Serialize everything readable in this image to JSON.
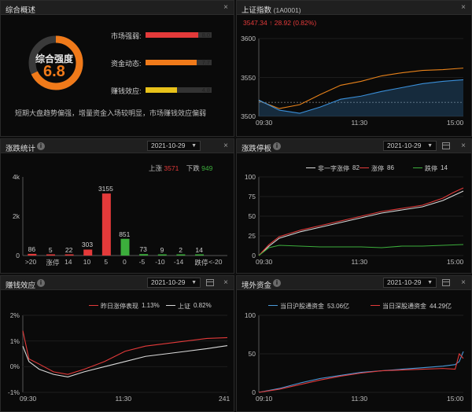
{
  "overview": {
    "title": "综合概述",
    "gauge_label": "综合强度",
    "gauge_value": "6.8",
    "gauge_fraction": 0.68,
    "metrics": [
      {
        "label": "市场强弱:",
        "value": "8.0",
        "fraction": 0.8,
        "color": "#e33a3a"
      },
      {
        "label": "资金动态:",
        "value": "7.7",
        "fraction": 0.77,
        "color": "#f07a1a"
      },
      {
        "label": "赚钱效应:",
        "value": "4.8",
        "fraction": 0.48,
        "color": "#e8c21a"
      }
    ],
    "summary": "短期大盘趋势偏强，增量资金入场较明显，市场赚钱效应偏弱"
  },
  "index": {
    "title": "上证指数",
    "code": "(1A0001)",
    "price": "3547.34",
    "arrow": "↑",
    "change": "28.92",
    "pct": "(0.82%)",
    "y_ticks": [
      "3600",
      "3550",
      "3500"
    ],
    "x_ticks": [
      "09:30",
      "11:30",
      "15:00"
    ]
  },
  "stats": {
    "title": "涨跌统计",
    "date": "2021-10-29",
    "up_label": "上涨",
    "up_count": "3571",
    "down_label": "下跌",
    "down_count": "949",
    "y_ticks": [
      "4k",
      "2k",
      "0"
    ]
  },
  "limit": {
    "title": "涨跌停板",
    "date": "2021-10-29",
    "legend": [
      {
        "name": "非一字涨停",
        "value": "82",
        "color": "#d9d9d9"
      },
      {
        "name": "涨停",
        "value": "86",
        "color": "#e33a3a"
      },
      {
        "name": "跌停",
        "value": "14",
        "color": "#3cae3c"
      }
    ],
    "y_ticks": [
      "100",
      "75",
      "50",
      "25",
      "0"
    ],
    "x_ticks": [
      "09:30",
      "11:30",
      "15:00"
    ]
  },
  "profit": {
    "title": "赚钱效应",
    "date": "2021-10-29",
    "legend": [
      {
        "name": "昨日涨停表现",
        "value": "1.13%",
        "color": "#e33a3a"
      },
      {
        "name": "上证",
        "value": "0.82%",
        "color": "#d9d9d9"
      }
    ],
    "y_ticks": [
      "2%",
      "1%",
      "0%",
      "-1%"
    ],
    "x_ticks": [
      "09:30",
      "11:30",
      "241"
    ]
  },
  "foreign": {
    "title": "境外资金",
    "date": "2021-10-29",
    "legend": [
      {
        "name": "当日沪股通资金",
        "value": "53.06亿",
        "color": "#4a9ad9"
      },
      {
        "name": "当日深股通资金",
        "value": "44.29亿",
        "color": "#e33a3a"
      }
    ],
    "y_ticks": [
      "100",
      "50",
      "0"
    ],
    "x_ticks": [
      "09:10",
      "11:30",
      "15:00"
    ]
  },
  "chart_data": [
    {
      "type": "line",
      "title": "上证指数",
      "x_ticks": [
        "09:30",
        "11:30",
        "15:00"
      ],
      "ylim": [
        3500,
        3600
      ],
      "series": [
        {
          "color": "#e8821a",
          "x": [
            0,
            0.1,
            0.2,
            0.3,
            0.4,
            0.5,
            0.6,
            0.7,
            0.8,
            0.9,
            1.0
          ],
          "values": [
            3520,
            3510,
            3515,
            3528,
            3540,
            3545,
            3552,
            3556,
            3559,
            3560,
            3562
          ]
        },
        {
          "color": "#3a8fd9",
          "x": [
            0,
            0.1,
            0.2,
            0.3,
            0.4,
            0.5,
            0.6,
            0.7,
            0.8,
            0.9,
            1.0
          ],
          "values": [
            3521,
            3508,
            3504,
            3512,
            3522,
            3526,
            3532,
            3537,
            3542,
            3545,
            3547
          ]
        }
      ],
      "reference": 3518
    },
    {
      "type": "bar",
      "title": "涨跌统计",
      "categories": [
        ">20",
        "涨停",
        "14",
        "10",
        "5",
        "0",
        "-5",
        "-10",
        "-14",
        "跌停",
        "<-20"
      ],
      "values": [
        86,
        5,
        22,
        303,
        3155,
        851,
        73,
        9,
        2,
        14,
        0
      ],
      "labels": [
        "86",
        "5",
        "22",
        "303",
        "3155",
        "851",
        "73",
        "9",
        "2",
        "14",
        ""
      ],
      "colors": [
        "#e33a3a",
        "#e33a3a",
        "#e33a3a",
        "#e33a3a",
        "#e33a3a",
        "#3cae3c",
        "#3cae3c",
        "#3cae3c",
        "#3cae3c",
        "#3cae3c",
        "#3cae3c"
      ],
      "ylim": [
        0,
        4000
      ]
    },
    {
      "type": "line",
      "title": "涨跌停板",
      "x_ticks": [
        "09:30",
        "11:30",
        "15:00"
      ],
      "ylim": [
        0,
        100
      ],
      "series": [
        {
          "name": "非一字涨停",
          "color": "#d9d9d9",
          "x": [
            0,
            0.05,
            0.1,
            0.2,
            0.3,
            0.4,
            0.5,
            0.6,
            0.7,
            0.8,
            0.9,
            0.95,
            1.0
          ],
          "values": [
            0,
            12,
            22,
            30,
            36,
            42,
            48,
            54,
            58,
            62,
            70,
            76,
            82
          ]
        },
        {
          "name": "涨停",
          "color": "#e33a3a",
          "x": [
            0,
            0.05,
            0.1,
            0.2,
            0.3,
            0.4,
            0.5,
            0.6,
            0.7,
            0.8,
            0.9,
            0.95,
            1.0
          ],
          "values": [
            0,
            14,
            24,
            32,
            38,
            44,
            50,
            56,
            60,
            64,
            73,
            80,
            86
          ]
        },
        {
          "name": "跌停",
          "color": "#3cae3c",
          "x": [
            0,
            0.05,
            0.1,
            0.2,
            0.3,
            0.4,
            0.5,
            0.6,
            0.7,
            0.8,
            0.9,
            1.0
          ],
          "values": [
            0,
            10,
            13,
            12,
            11,
            11,
            11,
            10,
            12,
            12,
            13,
            14
          ]
        }
      ]
    },
    {
      "type": "line",
      "title": "赚钱效应",
      "x_ticks": [
        "09:30",
        "11:30",
        "241"
      ],
      "ylim": [
        -1,
        2
      ],
      "series": [
        {
          "name": "昨日涨停表现",
          "color": "#e33a3a",
          "x": [
            0,
            0.03,
            0.08,
            0.15,
            0.22,
            0.3,
            0.4,
            0.5,
            0.6,
            0.7,
            0.8,
            0.9,
            1.0
          ],
          "values": [
            1.4,
            0.3,
            0.1,
            -0.2,
            -0.3,
            -0.1,
            0.2,
            0.6,
            0.8,
            0.9,
            1.0,
            1.1,
            1.13
          ]
        },
        {
          "name": "上证",
          "color": "#d9d9d9",
          "x": [
            0,
            0.03,
            0.08,
            0.15,
            0.22,
            0.3,
            0.4,
            0.5,
            0.6,
            0.7,
            0.8,
            0.9,
            1.0
          ],
          "values": [
            0.8,
            0.2,
            -0.1,
            -0.3,
            -0.4,
            -0.2,
            0.0,
            0.2,
            0.4,
            0.5,
            0.6,
            0.7,
            0.82
          ]
        }
      ]
    },
    {
      "type": "line",
      "title": "境外资金",
      "x_ticks": [
        "09:10",
        "11:30",
        "15:00"
      ],
      "ylim": [
        0,
        100
      ],
      "series": [
        {
          "name": "当日沪股通资金",
          "color": "#4a9ad9",
          "x": [
            0,
            0.1,
            0.2,
            0.3,
            0.4,
            0.5,
            0.6,
            0.7,
            0.8,
            0.9,
            0.96,
            0.98,
            1.0
          ],
          "values": [
            0,
            5,
            12,
            18,
            22,
            26,
            28,
            30,
            32,
            34,
            36,
            40,
            53
          ]
        },
        {
          "name": "当日深股通资金",
          "color": "#e33a3a",
          "x": [
            0,
            0.1,
            0.2,
            0.3,
            0.4,
            0.5,
            0.6,
            0.7,
            0.8,
            0.9,
            0.96,
            0.98,
            1.0
          ],
          "values": [
            0,
            4,
            10,
            16,
            21,
            25,
            28,
            29,
            30,
            31,
            30,
            50,
            44
          ]
        }
      ]
    }
  ]
}
